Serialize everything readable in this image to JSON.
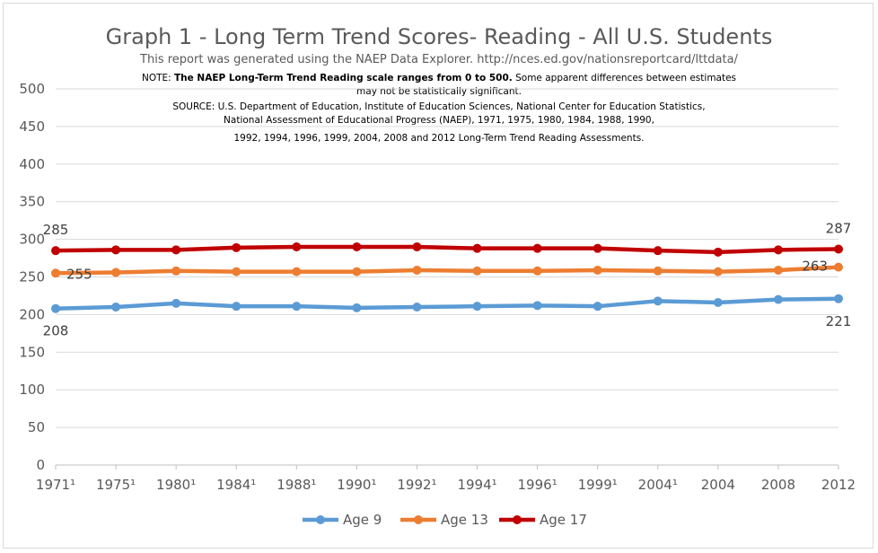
{
  "chart_data": {
    "type": "line",
    "title": "Graph 1 - Long Term Trend Scores- Reading - All U.S. Students",
    "subtitle": "This report was generated using the NAEP Data Explorer. http://nces.ed.gov/nationsreportcard/lttdata/",
    "note_lines": [
      {
        "prefix": "NOTE: ",
        "bold": "The NAEP Long-Term Trend Reading scale ranges from 0 to 500.",
        "rest": "  Some apparent differences between estimates"
      },
      {
        "prefix": "",
        "bold": "",
        "rest": "may not be statistically significant."
      },
      {
        "prefix": "",
        "bold": "",
        "rest": "SOURCE: U.S. Department of Education, Institute of Education Sciences, National Center for Education Statistics,"
      },
      {
        "prefix": "",
        "bold": "",
        "rest": "National Assessment of Educational Progress (NAEP), 1971, 1975,  1980, 1984,  1988, 1990,"
      },
      {
        "prefix": "",
        "bold": "",
        "rest": "1992,  1994, 1996,  1999, 2004,  2008  and 2012  Long-Term Trend Reading Assessments."
      }
    ],
    "categories": [
      "1971¹",
      "1975¹",
      "1980¹",
      "1984¹",
      "1988¹",
      "1990¹",
      "1992¹",
      "1994¹",
      "1996¹",
      "1999¹",
      "2004¹",
      "2004",
      "2008",
      "2012"
    ],
    "ylim": [
      0,
      500
    ],
    "yticks": [
      0,
      50,
      100,
      150,
      200,
      250,
      300,
      350,
      400,
      450,
      500
    ],
    "grid": true,
    "legend_position": "bottom",
    "series": [
      {
        "name": "Age 9",
        "color": "#5b9bd5",
        "values": [
          208,
          210,
          215,
          211,
          211,
          209,
          210,
          211,
          212,
          211,
          218,
          216,
          220,
          221
        ]
      },
      {
        "name": "Age 13",
        "color": "#ed7d31",
        "values": [
          255,
          256,
          258,
          257,
          257,
          257,
          259,
          258,
          258,
          259,
          258,
          257,
          259,
          263
        ]
      },
      {
        "name": "Age 17",
        "color": "#c00000",
        "values": [
          285,
          286,
          286,
          289,
          290,
          290,
          290,
          288,
          288,
          288,
          285,
          283,
          286,
          287
        ]
      }
    ],
    "data_labels": [
      {
        "series": 0,
        "index": 0,
        "text": "208",
        "place": "below"
      },
      {
        "series": 0,
        "index": 13,
        "text": "221",
        "place": "below"
      },
      {
        "series": 1,
        "index": 0,
        "text": "255",
        "place": "right"
      },
      {
        "series": 1,
        "index": 13,
        "text": "263",
        "place": "left"
      },
      {
        "series": 2,
        "index": 0,
        "text": "285",
        "place": "above"
      },
      {
        "series": 2,
        "index": 13,
        "text": "287",
        "place": "above"
      }
    ]
  }
}
